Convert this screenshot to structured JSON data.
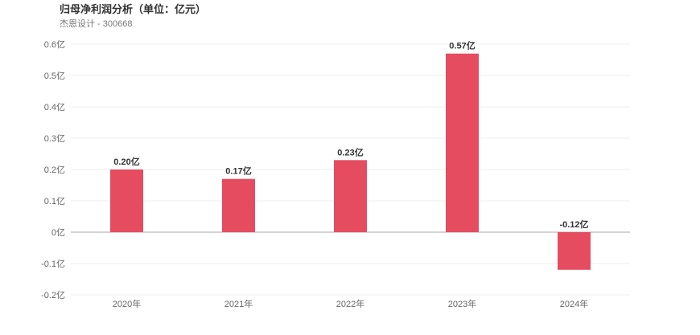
{
  "header": {
    "title": "归母净利润分析（单位：亿元）",
    "subtitle": "杰恩设计 - 300668"
  },
  "chart_data": {
    "type": "bar",
    "title": "归母净利润分析（单位：亿元）",
    "subtitle": "杰恩设计 - 300668",
    "categories": [
      "2020年",
      "2021年",
      "2022年",
      "2023年",
      "2024年"
    ],
    "values": [
      0.2,
      0.17,
      0.23,
      0.57,
      -0.12
    ],
    "data_labels": [
      "0.20亿",
      "0.17亿",
      "0.23亿",
      "0.57亿",
      "-0.12亿"
    ],
    "y_ticks": [
      0.6,
      0.5,
      0.4,
      0.3,
      0.2,
      0.1,
      0,
      -0.1,
      -0.2
    ],
    "y_tick_labels": [
      "0.6亿",
      "0.5亿",
      "0.4亿",
      "0.3亿",
      "0.2亿",
      "0.1亿",
      "0亿",
      "-0.1亿",
      "-0.2亿"
    ],
    "ylim": [
      -0.2,
      0.6
    ],
    "grid": true,
    "bar_color": "#e64c60",
    "grid_color": "#eeeeee",
    "zero_line_color": "#aaaaaa"
  }
}
